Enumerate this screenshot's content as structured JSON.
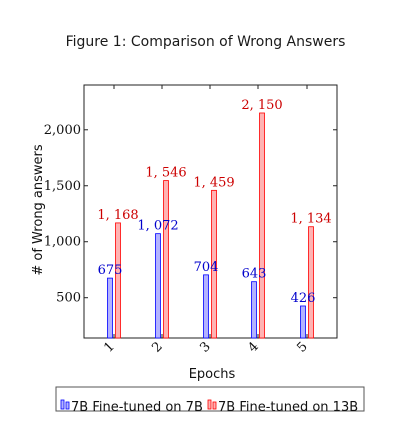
{
  "figure_title": "Figure 1: Comparison of Wrong Answers",
  "chart_data": {
    "type": "bar",
    "title": "Figure 1: Comparison of Wrong Answers",
    "xlabel": "Epochs",
    "ylabel": "# of Wrong answers",
    "categories": [
      "1",
      "2",
      "3",
      "4",
      "5"
    ],
    "ylim": [
      140,
      2400
    ],
    "yticks": [
      500,
      1000,
      1500,
      2000
    ],
    "ytick_labels": [
      "500",
      "1,000",
      "1,500",
      "2,000"
    ],
    "grid": false,
    "legend_position": "bottom",
    "series": [
      {
        "name": "7B Fine-tuned on 7B",
        "values": [
          675,
          1072,
          704,
          643,
          426
        ],
        "labels": [
          "675",
          "1, 072",
          "704",
          "643",
          "426"
        ],
        "fill": "#b3b3ff",
        "stroke": "#0000ff",
        "label_color": "#0000cc"
      },
      {
        "name": "7B Fine-tuned on 13B",
        "values": [
          1168,
          1546,
          1459,
          2150,
          1134
        ],
        "labels": [
          "1, 168",
          "1, 546",
          "1, 459",
          "2, 150",
          "1, 134"
        ],
        "fill": "#ffb3b3",
        "stroke": "#ff0000",
        "label_color": "#cc0000"
      }
    ]
  }
}
